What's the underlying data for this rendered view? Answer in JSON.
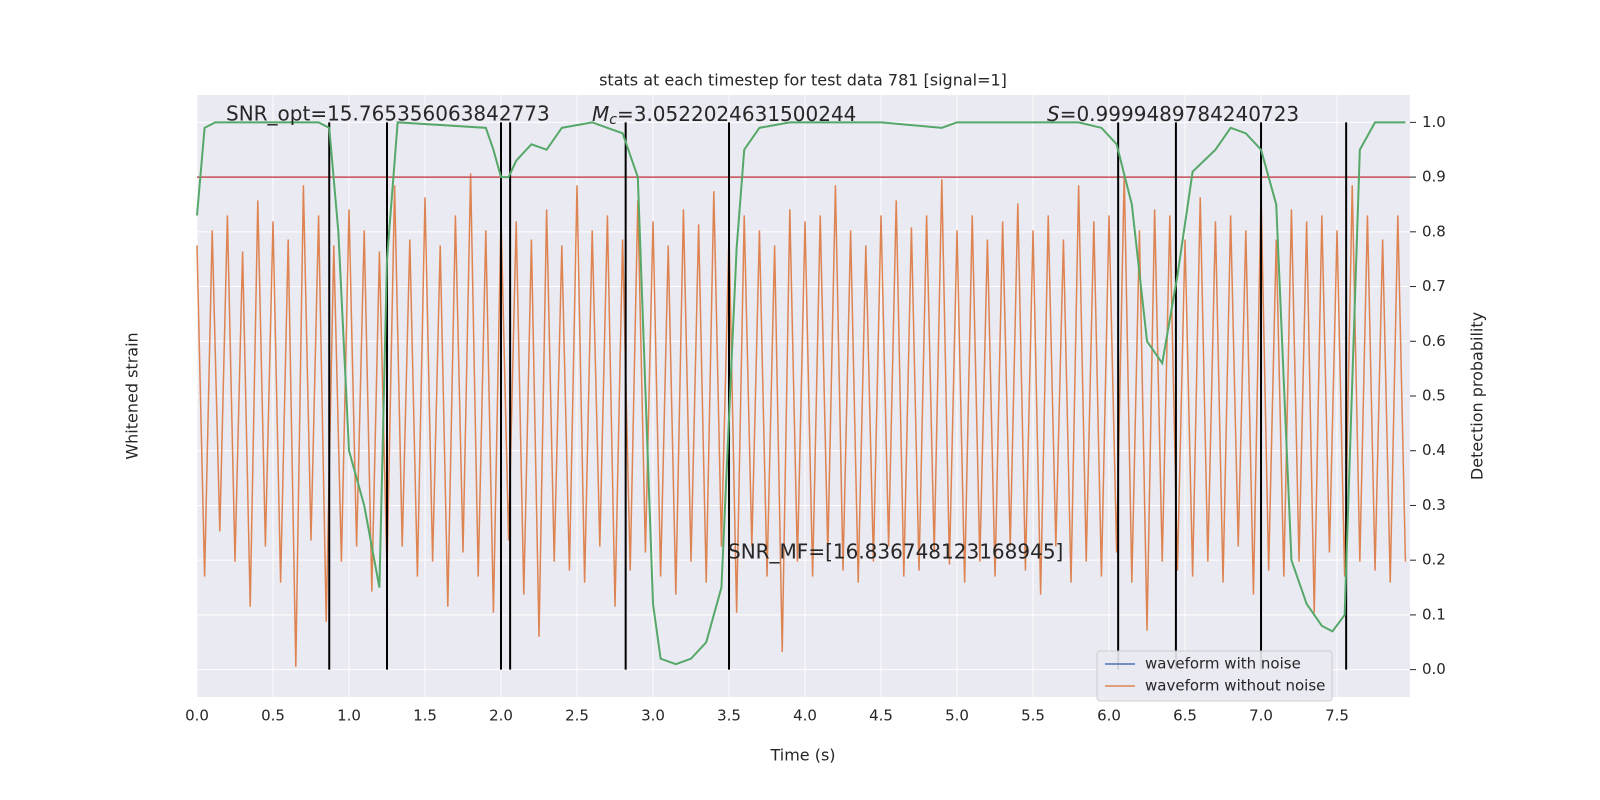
{
  "chart_data": {
    "type": "line",
    "title": "stats at each timestep for test data 781 [signal=1]",
    "xlabel": "Time (s)",
    "ylabel": "Whitened strain",
    "y2label": "Detection probability",
    "grid": true,
    "legend": "lower right",
    "xlim": [
      0,
      7.98
    ],
    "xticks": [
      {
        "value": 0,
        "label": "0.0"
      },
      0.5,
      {
        "value": 1,
        "label": "1.0"
      },
      1.5,
      {
        "value": 2,
        "label": "2.0"
      },
      2.5,
      {
        "value": 3,
        "label": "3.0"
      },
      3.5,
      {
        "value": 4,
        "label": "4.0"
      },
      4.5,
      {
        "value": 5,
        "label": "5.0"
      },
      5.5,
      {
        "value": 6,
        "label": "6.0"
      },
      6.5,
      {
        "value": 7,
        "label": "7.0"
      },
      7.5
    ],
    "ylim": [
      -1,
      1
    ],
    "y2lim": [
      -0.05,
      1.05
    ],
    "y2ticks": [
      {
        "value": 0,
        "label": "0.0"
      },
      0.1,
      0.2,
      0.3,
      0.4,
      0.5,
      0.6,
      0.7,
      0.8,
      0.9,
      {
        "value": 1,
        "label": "1.0"
      }
    ],
    "series": [
      {
        "name": "waveform with noise",
        "color": "#4c72b0"
      },
      {
        "name": "waveform without noise",
        "color": "#dd8452",
        "x": [
          0,
          0.05,
          0.1,
          0.15,
          0.2,
          0.25,
          0.3,
          0.35,
          0.4,
          0.45,
          0.5,
          0.55,
          0.6,
          0.65,
          0.7,
          0.75,
          0.8,
          0.85,
          0.9,
          0.95,
          1,
          1.05,
          1.1,
          1.15,
          1.2,
          1.25,
          1.3,
          1.35,
          1.4,
          1.45,
          1.5,
          1.55,
          1.6,
          1.65,
          1.7,
          1.75,
          1.8,
          1.85,
          1.9,
          1.95,
          2,
          2.05,
          2.1,
          2.15,
          2.2,
          2.25,
          2.3,
          2.35,
          2.4,
          2.45,
          2.5,
          2.55,
          2.6,
          2.65,
          2.7,
          2.75,
          2.8,
          2.85,
          2.9,
          2.95,
          3,
          3.05,
          3.1,
          3.15,
          3.2,
          3.25,
          3.3,
          3.35,
          3.4,
          3.45,
          3.5,
          3.55,
          3.6,
          3.65,
          3.7,
          3.75,
          3.8,
          3.85,
          3.9,
          3.95,
          4,
          4.05,
          4.1,
          4.15,
          4.2,
          4.25,
          4.3,
          4.35,
          4.4,
          4.45,
          4.5,
          4.55,
          4.6,
          4.65,
          4.7,
          4.75,
          4.8,
          4.85,
          4.9,
          4.95,
          5,
          5.05,
          5.1,
          5.15,
          5.2,
          5.25,
          5.3,
          5.35,
          5.4,
          5.45,
          5.5,
          5.55,
          5.6,
          5.65,
          5.7,
          5.75,
          5.8,
          5.85,
          5.9,
          5.95,
          6,
          6.05,
          6.1,
          6.15,
          6.2,
          6.25,
          6.3,
          6.35,
          6.4,
          6.45,
          6.5,
          6.55,
          6.6,
          6.65,
          6.7,
          6.75,
          6.8,
          6.85,
          6.9,
          6.95,
          7,
          7.05,
          7.1,
          7.15,
          7.2,
          7.25,
          7.3,
          7.35,
          7.4,
          7.45,
          7.5,
          7.55,
          7.6,
          7.65,
          7.7,
          7.75,
          7.8,
          7.85,
          7.9,
          7.95
        ],
        "values": [
          0.5,
          -0.6,
          0.55,
          -0.45,
          0.6,
          -0.55,
          0.48,
          -0.7,
          0.65,
          -0.5,
          0.58,
          -0.62,
          0.52,
          -0.9,
          0.7,
          -0.48,
          0.6,
          -0.75,
          0.5,
          -0.55,
          0.62,
          -0.5,
          0.55,
          -0.65,
          0.48,
          -0.58,
          0.7,
          -0.5,
          0.52,
          -0.6,
          0.66,
          -0.55,
          0.5,
          -0.7,
          0.6,
          -0.52,
          0.74,
          -0.6,
          0.55,
          -0.72,
          0.6,
          -0.48,
          0.58,
          -0.66,
          0.52,
          -0.8,
          0.62,
          -0.55,
          0.5,
          -0.58,
          0.7,
          -0.62,
          0.55,
          -0.5,
          0.6,
          -0.7,
          0.52,
          -0.58,
          0.65,
          -0.52,
          0.58,
          -0.6,
          0.5,
          -0.66,
          0.62,
          -0.55,
          0.57,
          -0.62,
          0.68,
          -0.5,
          0.54,
          -0.72,
          0.6,
          -0.5,
          0.55,
          -0.6,
          0.5,
          -0.85,
          0.62,
          -0.55,
          0.58,
          -0.6,
          0.6,
          -0.52,
          0.7,
          -0.58,
          0.55,
          -0.62,
          0.5,
          -0.55,
          0.6,
          -0.5,
          0.65,
          -0.6,
          0.56,
          -0.58,
          0.6,
          -0.52,
          0.72,
          -0.56,
          0.55,
          -0.62,
          0.6,
          -0.55,
          0.52,
          -0.6,
          0.58,
          -0.5,
          0.64,
          -0.58,
          0.55,
          -0.66,
          0.6,
          -0.5,
          0.52,
          -0.62,
          0.7,
          -0.55,
          0.58,
          -0.6,
          0.6,
          -0.52,
          0.74,
          -0.62,
          0.55,
          -0.78,
          0.62,
          -0.55,
          0.6,
          -0.58,
          0.52,
          -0.6,
          0.66,
          -0.55,
          0.58,
          -0.62,
          0.6,
          -0.5,
          0.55,
          -0.66,
          0.68,
          -0.58,
          0.52,
          -0.6,
          0.62,
          -0.55,
          0.58,
          -0.72,
          0.6,
          -0.52,
          0.55,
          -0.6,
          0.7,
          -0.55,
          0.6,
          -0.58,
          0.52,
          -0.62,
          0.6,
          -0.55
        ]
      }
    ],
    "detection_probability": {
      "color": "#55a868",
      "axis": "y2",
      "x": [
        0,
        0.05,
        0.12,
        0.8,
        0.87,
        0.93,
        1,
        1.1,
        1.2,
        1.25,
        1.32,
        1.9,
        1.95,
        2,
        2.05,
        2.1,
        2.2,
        2.3,
        2.4,
        2.6,
        2.8,
        2.9,
        3,
        3.05,
        3.15,
        3.25,
        3.35,
        3.45,
        3.55,
        3.6,
        3.7,
        3.9,
        4.5,
        4.9,
        5,
        5.8,
        5.95,
        6.05,
        6.15,
        6.25,
        6.35,
        6.45,
        6.55,
        6.7,
        6.8,
        6.9,
        7,
        7.1,
        7.2,
        7.3,
        7.4,
        7.47,
        7.55,
        7.65,
        7.75,
        7.95
      ],
      "values": [
        0.83,
        0.99,
        1,
        1,
        0.99,
        0.8,
        0.4,
        0.3,
        0.15,
        0.75,
        1,
        0.99,
        0.95,
        0.9,
        0.9,
        0.93,
        0.96,
        0.95,
        0.99,
        1,
        0.98,
        0.9,
        0.12,
        0.02,
        0.01,
        0.02,
        0.05,
        0.15,
        0.77,
        0.95,
        0.99,
        1,
        1,
        0.99,
        1,
        1,
        0.99,
        0.96,
        0.85,
        0.6,
        0.56,
        0.72,
        0.91,
        0.95,
        0.99,
        0.98,
        0.95,
        0.85,
        0.2,
        0.12,
        0.08,
        0.07,
        0.1,
        0.95,
        1,
        1
      ]
    },
    "threshold": {
      "value": 0.9,
      "color": "#c44e52"
    },
    "event_times": {
      "color": "#000000",
      "values": [
        0.87,
        1.25,
        2.0,
        2.06,
        2.82,
        3.5,
        6.06,
        6.44,
        7.0,
        7.56
      ]
    },
    "annotations": {
      "snr_opt": "SNR_opt=15.765356063842773",
      "mc_symbol": "M",
      "mc_subscript": "c",
      "mc_value": "=3.0522024631500244",
      "s_symbol": "S",
      "s_value": "=0.9999489784240723",
      "snr_mf": "SNR_MF=[16.836748123168945]"
    }
  }
}
